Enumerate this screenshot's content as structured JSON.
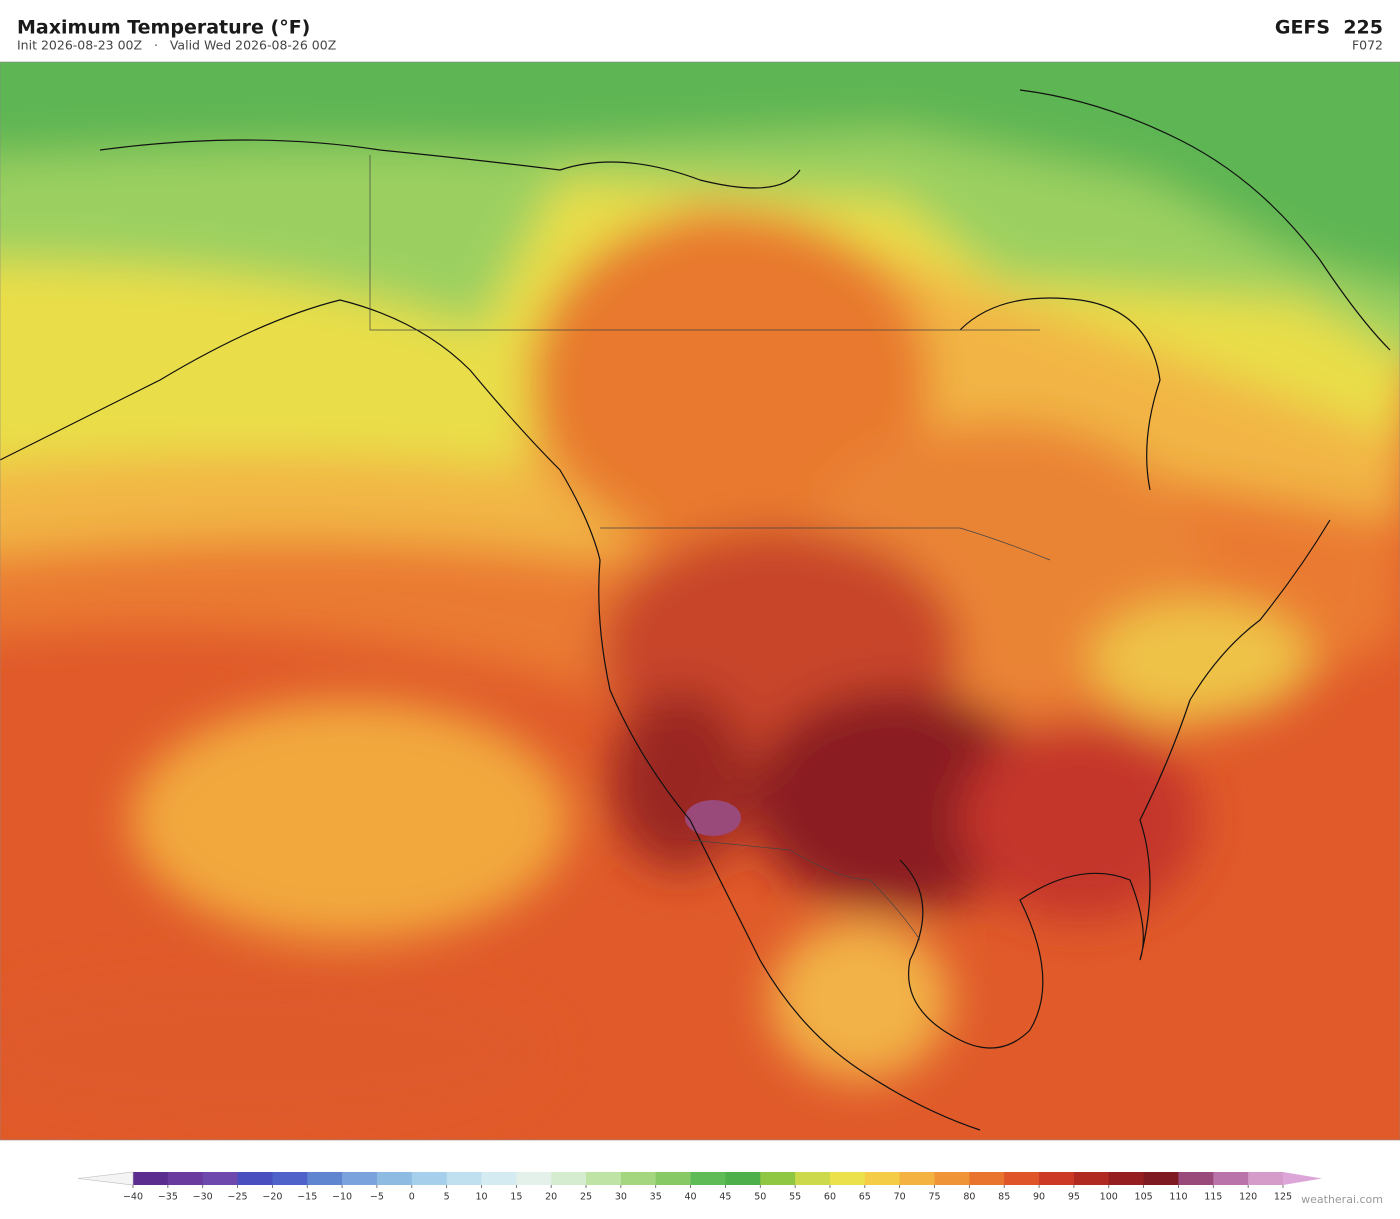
{
  "header": {
    "title": "Maximum Temperature  (°F)",
    "subtitle": "Init 2026-08-23 00Z   ·   Valid Wed 2026-08-26 00Z",
    "model": "GEFS  225",
    "forecast_hour": "F072"
  },
  "colorbar": {
    "ticks": [
      {
        "value": -40,
        "label": "−40"
      },
      {
        "value": -35,
        "label": "−35"
      },
      {
        "value": -30,
        "label": "−30"
      },
      {
        "value": -25,
        "label": "−25"
      },
      {
        "value": -20,
        "label": "−20"
      },
      {
        "value": -15,
        "label": "−15"
      },
      {
        "value": -10,
        "label": "−10"
      },
      {
        "value": -5,
        "label": "−5"
      },
      0,
      5,
      10,
      15,
      20,
      25,
      30,
      35,
      40,
      45,
      50,
      55,
      60,
      65,
      70,
      75,
      80,
      85,
      90,
      95,
      100,
      105,
      110,
      115,
      120,
      125
    ],
    "colors": [
      "#5a2d8f",
      "#6a3b9f",
      "#6e48ad",
      "#4a4fbf",
      "#4e62c9",
      "#5f85d0",
      "#7aa2dc",
      "#8dbbe2",
      "#a5cfea",
      "#c0e0ef",
      "#d5ebf2",
      "#e3f1ea",
      "#d5ecd0",
      "#bfe3a5",
      "#a3d67f",
      "#86c965",
      "#5fbb55",
      "#4caf4a",
      "#8fc743",
      "#cbd94a",
      "#ebe14a",
      "#f5cc45",
      "#f4b240",
      "#ef9538",
      "#e8742e",
      "#df5428",
      "#cc3a26",
      "#b02a22",
      "#951f20",
      "#7d1a22",
      "#9a4a7a",
      "#b975a9",
      "#d69cc9"
    ],
    "under_color": "#f4f4f4",
    "over_color": "#dca6d8"
  },
  "attribution": "weatherai.com"
}
